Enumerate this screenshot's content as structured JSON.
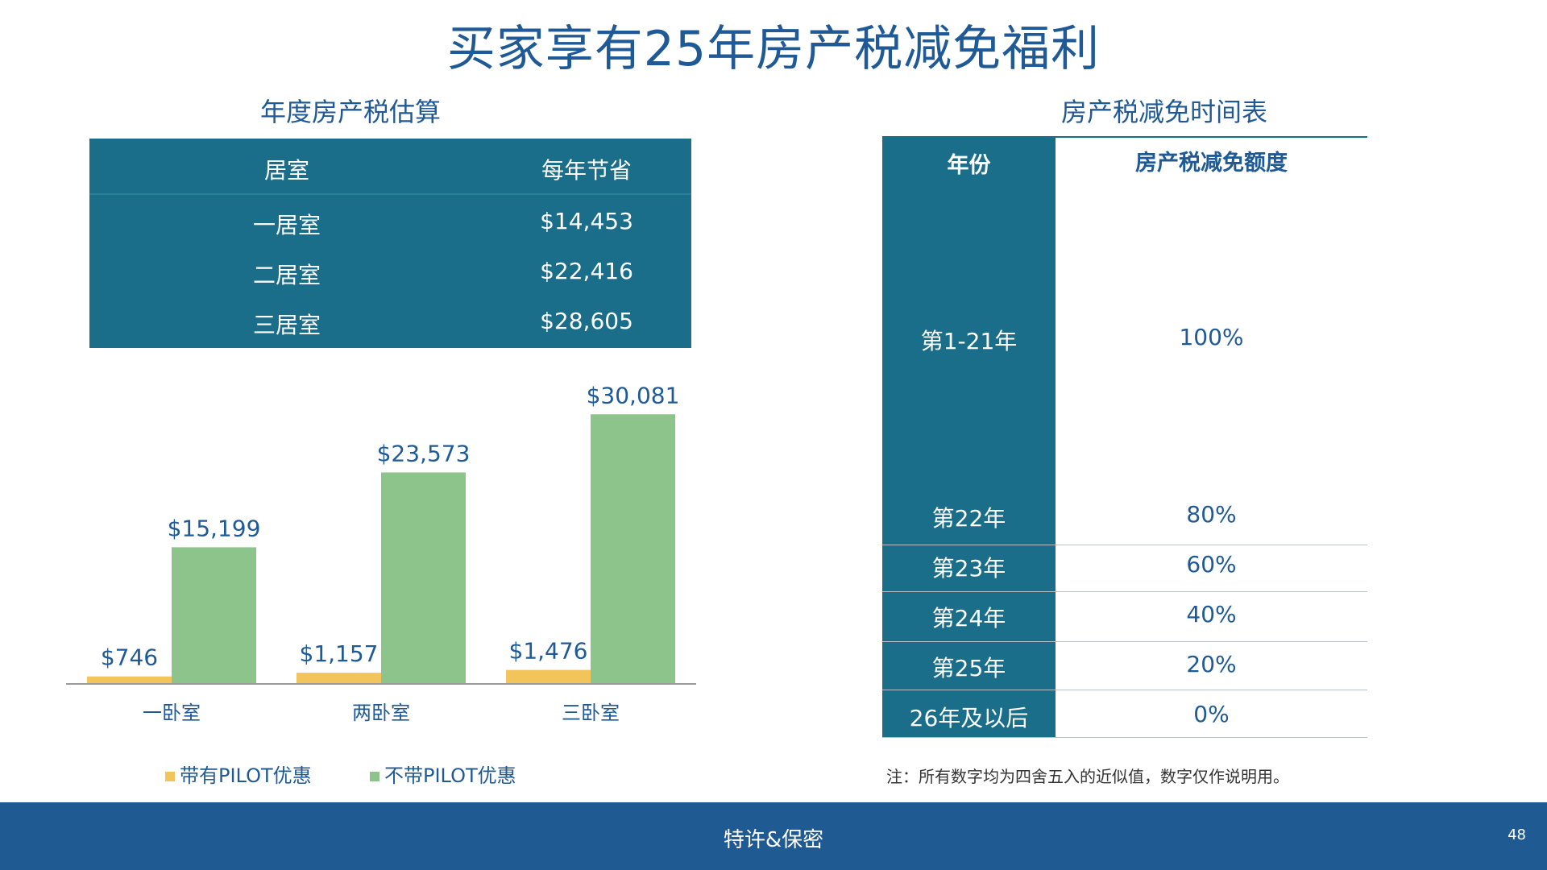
{
  "title": "买家享有25年房产税减免福利",
  "left": {
    "subtitle": "年度房产税估算",
    "table": {
      "headers": [
        "居室",
        "每年节省"
      ],
      "rows": [
        [
          "一居室",
          "$14,453"
        ],
        [
          "二居室",
          "$22,416"
        ],
        [
          "三居室",
          "$28,605"
        ]
      ]
    }
  },
  "chart_data": {
    "type": "bar",
    "categories": [
      "一卧室",
      "两卧室",
      "三卧室"
    ],
    "series": [
      {
        "name": "带有PILOT优惠",
        "values": [
          746,
          1157,
          1476
        ],
        "labels": [
          "$746",
          "$1,157",
          "$1,476"
        ],
        "color": "#f2c45a"
      },
      {
        "name": "不带PILOT优惠",
        "values": [
          15199,
          23573,
          30081
        ],
        "labels": [
          "$15,199",
          "$23,573",
          "$30,081"
        ],
        "color": "#8cc48c"
      }
    ],
    "ylim": [
      0,
      32000
    ],
    "grid": false,
    "legend": "bottom"
  },
  "right": {
    "subtitle": "房产税减免时间表",
    "headers": [
      "年份",
      "房产税减免额度"
    ],
    "rows": [
      [
        "第1-21年",
        "100%"
      ],
      [
        "第22年",
        "80%"
      ],
      [
        "第23年",
        "60%"
      ],
      [
        "第24年",
        "40%"
      ],
      [
        "第25年",
        "20%"
      ],
      [
        "26年及以后",
        "0%"
      ]
    ],
    "note": "注：所有数字均为四舍五入的近似值，数字仅作说明用。"
  },
  "footer": {
    "text": "特许&保密",
    "page": "48"
  },
  "colors": {
    "accent": "#1f5a96",
    "table_bg": "#1a6e8a",
    "footer_bg": "#1f5a93"
  }
}
